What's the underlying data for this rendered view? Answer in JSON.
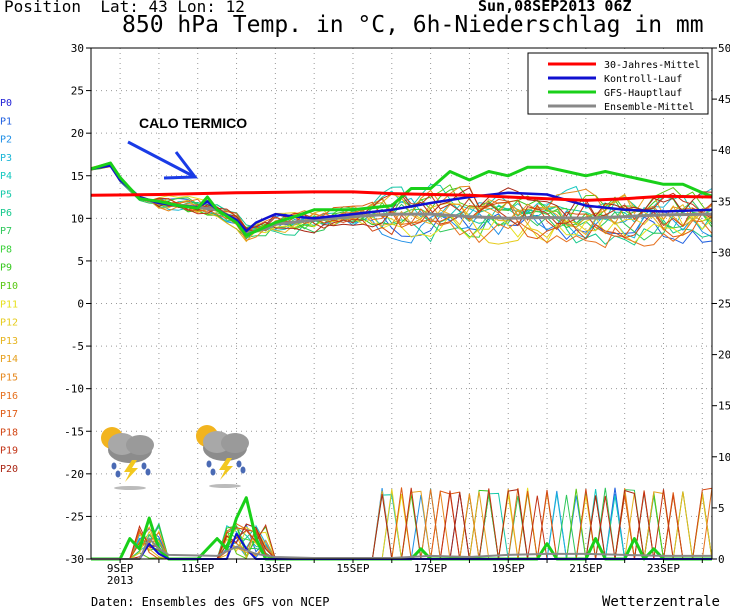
{
  "header": {
    "position_label": "Position",
    "lat_label": "Lat: 43",
    "lon_label": "Lon: 12",
    "datetime": "Sun,08SEP2013 06Z",
    "title": "850 hPa Temp. in °C, 6h-Niederschlag in mm"
  },
  "footer": {
    "source": "Daten: Ensembles des GFS von NCEP",
    "brand": "Wetterzentrale"
  },
  "annotation": {
    "text": "CALO TERMICO",
    "color": "#1a3be6"
  },
  "member_labels": [
    {
      "label": "P0",
      "color": "#1f1fd6"
    },
    {
      "label": "P1",
      "color": "#1f5fe0"
    },
    {
      "label": "P2",
      "color": "#1f8fe6"
    },
    {
      "label": "P3",
      "color": "#19b6d6"
    },
    {
      "label": "P4",
      "color": "#14c8c0"
    },
    {
      "label": "P5",
      "color": "#14c8a8"
    },
    {
      "label": "P6",
      "color": "#14c88c"
    },
    {
      "label": "P7",
      "color": "#2ec85a"
    },
    {
      "label": "P8",
      "color": "#3ad13a"
    },
    {
      "label": "P9",
      "color": "#36c81e"
    },
    {
      "label": "P10",
      "color": "#5ac814"
    },
    {
      "label": "P11",
      "color": "#e6e01e"
    },
    {
      "label": "P12",
      "color": "#e6cc1e"
    },
    {
      "label": "P13",
      "color": "#e6b41e"
    },
    {
      "label": "P14",
      "color": "#e6a01e"
    },
    {
      "label": "P15",
      "color": "#e6881e"
    },
    {
      "label": "P16",
      "color": "#e6701e"
    },
    {
      "label": "P17",
      "color": "#de5a14"
    },
    {
      "label": "P18",
      "color": "#d24614"
    },
    {
      "label": "P19",
      "color": "#c23214"
    },
    {
      "label": "P20",
      "color": "#aa2614"
    }
  ],
  "chart_data": {
    "type": "line",
    "title": "850 hPa Temp. in °C, 6h-Niederschlag in mm",
    "x_ticks": [
      "9SEP",
      "11SEP",
      "13SEP",
      "15SEP",
      "17SEP",
      "19SEP",
      "21SEP",
      "23SEP"
    ],
    "x_tick_days": [
      9,
      11,
      13,
      15,
      17,
      19,
      21,
      23
    ],
    "x_year_label": "2013",
    "xlim": [
      8.25,
      24.25
    ],
    "ylim_left": [
      -30,
      30
    ],
    "ylim_right": [
      0,
      50
    ],
    "y_ticks_left": [
      30,
      25,
      20,
      15,
      10,
      5,
      0,
      -5,
      -10,
      -15,
      -20,
      -25,
      -30
    ],
    "y_ticks_right": [
      50,
      45,
      40,
      35,
      30,
      25,
      20,
      15,
      10,
      5,
      0
    ],
    "grid": true,
    "legend_position": "top-right",
    "series": [
      {
        "name": "30-Jahres-Mittel",
        "color": "#ff0000",
        "points": [
          [
            8.25,
            12.7
          ],
          [
            10,
            12.8
          ],
          [
            12,
            13.0
          ],
          [
            14,
            13.1
          ],
          [
            15,
            13.1
          ],
          [
            16,
            12.9
          ],
          [
            18,
            12.7
          ],
          [
            19,
            12.5
          ],
          [
            20,
            12.3
          ],
          [
            21,
            12.1
          ],
          [
            22,
            12.3
          ],
          [
            23,
            12.6
          ],
          [
            24.25,
            12.5
          ]
        ]
      },
      {
        "name": "Kontroll-Lauf",
        "color": "#1010d0",
        "points": [
          [
            8.25,
            15.8
          ],
          [
            8.75,
            16.2
          ],
          [
            9,
            14.5
          ],
          [
            9.5,
            12.5
          ],
          [
            10,
            11.8
          ],
          [
            10.5,
            11.5
          ],
          [
            11,
            11.3
          ],
          [
            11.25,
            12.0
          ],
          [
            11.5,
            11.0
          ],
          [
            12,
            9.8
          ],
          [
            12.25,
            8.5
          ],
          [
            12.5,
            9.5
          ],
          [
            13,
            10.5
          ],
          [
            13.5,
            10.2
          ],
          [
            14,
            10.0
          ],
          [
            15,
            10.5
          ],
          [
            16,
            11.0
          ],
          [
            17,
            11.8
          ],
          [
            18,
            12.5
          ],
          [
            19,
            13.0
          ],
          [
            20,
            12.8
          ],
          [
            21,
            11.5
          ],
          [
            22,
            11.0
          ],
          [
            23,
            10.8
          ],
          [
            24.25,
            11.0
          ]
        ]
      },
      {
        "name": "GFS-Hauptlauf",
        "color": "#19d019",
        "points": [
          [
            8.25,
            15.8
          ],
          [
            8.75,
            16.5
          ],
          [
            9,
            14.8
          ],
          [
            9.5,
            12.3
          ],
          [
            10,
            12.0
          ],
          [
            10.5,
            11.5
          ],
          [
            11,
            11.2
          ],
          [
            11.25,
            12.5
          ],
          [
            11.5,
            11.0
          ],
          [
            12,
            9.5
          ],
          [
            12.25,
            8.0
          ],
          [
            12.75,
            9.0
          ],
          [
            13,
            9.5
          ],
          [
            13.5,
            10.2
          ],
          [
            14,
            11.0
          ],
          [
            15,
            11.0
          ],
          [
            16,
            11.5
          ],
          [
            16.5,
            13.5
          ],
          [
            17,
            13.5
          ],
          [
            17.5,
            15.5
          ],
          [
            18,
            14.5
          ],
          [
            18.5,
            15.5
          ],
          [
            19,
            15.0
          ],
          [
            19.5,
            16.0
          ],
          [
            20,
            16.0
          ],
          [
            20.5,
            15.5
          ],
          [
            21,
            15.0
          ],
          [
            21.5,
            15.5
          ],
          [
            22,
            15.0
          ],
          [
            22.5,
            14.5
          ],
          [
            23,
            14.0
          ],
          [
            23.5,
            14.0
          ],
          [
            24,
            13.0
          ],
          [
            24.25,
            12.6
          ]
        ]
      },
      {
        "name": "Ensemble-Mittel",
        "color": "#888888",
        "points": [
          [
            8.25,
            15.8
          ],
          [
            8.75,
            16.3
          ],
          [
            9,
            14.5
          ],
          [
            9.5,
            12.4
          ],
          [
            10,
            11.8
          ],
          [
            11,
            11.3
          ],
          [
            11.5,
            11.0
          ],
          [
            12,
            9.8
          ],
          [
            12.25,
            8.2
          ],
          [
            12.75,
            8.8
          ],
          [
            13,
            9.3
          ],
          [
            14,
            9.8
          ],
          [
            15,
            10.2
          ],
          [
            16,
            10.5
          ],
          [
            17,
            10.5
          ],
          [
            18,
            10.2
          ],
          [
            19,
            10.0
          ],
          [
            20,
            10.1
          ],
          [
            21,
            10.0
          ],
          [
            22,
            10.2
          ],
          [
            23,
            10.4
          ],
          [
            24.25,
            10.5
          ]
        ]
      }
    ],
    "precip_series": [
      {
        "name": "GFS-Hauptlauf",
        "color": "#19d019",
        "points": [
          [
            8.25,
            0
          ],
          [
            9,
            0
          ],
          [
            9.25,
            2
          ],
          [
            9.5,
            1
          ],
          [
            9.75,
            4
          ],
          [
            10,
            1
          ],
          [
            10.25,
            0
          ],
          [
            11,
            0
          ],
          [
            11.5,
            2
          ],
          [
            11.75,
            1
          ],
          [
            12,
            4
          ],
          [
            12.25,
            6
          ],
          [
            12.5,
            2
          ],
          [
            12.75,
            0
          ],
          [
            16.5,
            0
          ],
          [
            16.75,
            1
          ],
          [
            17,
            0
          ],
          [
            19.75,
            0
          ],
          [
            20,
            1.5
          ],
          [
            20.25,
            0
          ],
          [
            21,
            0
          ],
          [
            21.25,
            2
          ],
          [
            21.5,
            0
          ],
          [
            22,
            0
          ],
          [
            22.25,
            2
          ],
          [
            22.5,
            0
          ],
          [
            22.75,
            1
          ],
          [
            23,
            0
          ],
          [
            24.25,
            0
          ]
        ]
      },
      {
        "name": "Kontroll-Lauf",
        "color": "#1010d0",
        "points": [
          [
            8.25,
            0
          ],
          [
            9.5,
            0
          ],
          [
            9.75,
            1.5
          ],
          [
            10,
            0.5
          ],
          [
            10.25,
            0
          ],
          [
            11.75,
            0
          ],
          [
            12,
            2.5
          ],
          [
            12.25,
            1
          ],
          [
            12.5,
            0
          ],
          [
            24.25,
            0
          ]
        ]
      },
      {
        "name": "Ensemble-Mittel",
        "color": "#888888",
        "points": [
          [
            8.25,
            0
          ],
          [
            9.5,
            0
          ],
          [
            9.75,
            2
          ],
          [
            10,
            1
          ],
          [
            10.25,
            0.4
          ],
          [
            11.5,
            0.3
          ],
          [
            12,
            1.2
          ],
          [
            12.5,
            0.5
          ],
          [
            13,
            0.2
          ],
          [
            14,
            0.1
          ],
          [
            16,
            0.1
          ],
          [
            17,
            0.3
          ],
          [
            18,
            0.2
          ],
          [
            19,
            0.4
          ],
          [
            20,
            0.5
          ],
          [
            21,
            0.5
          ],
          [
            22,
            0.4
          ],
          [
            23,
            0.3
          ],
          [
            24.25,
            0.3
          ]
        ]
      }
    ],
    "ensemble_note": "Thin coloured lines P1–P20"
  }
}
